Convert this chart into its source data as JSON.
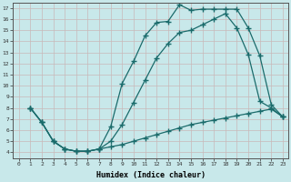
{
  "xlabel": "Humidex (Indice chaleur)",
  "bg_color": "#c8e8ea",
  "line_color": "#1a6b6b",
  "grid_color": "#b8d8da",
  "xlim": [
    -0.5,
    23.5
  ],
  "ylim": [
    3.5,
    17.5
  ],
  "xticks": [
    0,
    1,
    2,
    3,
    4,
    5,
    6,
    7,
    8,
    9,
    10,
    11,
    12,
    13,
    14,
    15,
    16,
    17,
    18,
    19,
    20,
    21,
    22,
    23
  ],
  "yticks": [
    4,
    5,
    6,
    7,
    8,
    9,
    10,
    11,
    12,
    13,
    14,
    15,
    16,
    17
  ],
  "line1_x": [
    1,
    2,
    3,
    4,
    5,
    6,
    7,
    8,
    9,
    10,
    11,
    12,
    13,
    14,
    15,
    16,
    17,
    18,
    19,
    20,
    21,
    22,
    23
  ],
  "line1_y": [
    8.0,
    6.7,
    5.0,
    4.3,
    4.1,
    4.1,
    4.3,
    6.3,
    10.2,
    12.2,
    14.5,
    15.7,
    15.8,
    17.3,
    16.8,
    16.9,
    16.9,
    16.9,
    16.9,
    15.2,
    12.7,
    8.3,
    7.2
  ],
  "line2_x": [
    1,
    2,
    3,
    4,
    5,
    6,
    7,
    8,
    9,
    10,
    11,
    12,
    13,
    14,
    15,
    16,
    17,
    18,
    19,
    20,
    21,
    22,
    23
  ],
  "line2_y": [
    8.0,
    6.7,
    5.0,
    4.3,
    4.1,
    4.1,
    4.3,
    4.5,
    4.7,
    5.0,
    5.3,
    5.6,
    5.9,
    6.2,
    6.5,
    6.7,
    6.9,
    7.1,
    7.3,
    7.5,
    7.7,
    7.9,
    7.2
  ],
  "line3_x": [
    1,
    2,
    3,
    4,
    5,
    6,
    7,
    8,
    9,
    10,
    11,
    12,
    13,
    14,
    15,
    16,
    17,
    18,
    19,
    20,
    21,
    22,
    23
  ],
  "line3_y": [
    8.0,
    6.7,
    5.0,
    4.3,
    4.1,
    4.1,
    4.3,
    5.0,
    6.5,
    8.5,
    10.5,
    12.5,
    13.8,
    14.8,
    15.0,
    15.5,
    16.0,
    16.5,
    15.2,
    12.8,
    8.6,
    8.0,
    7.2
  ]
}
